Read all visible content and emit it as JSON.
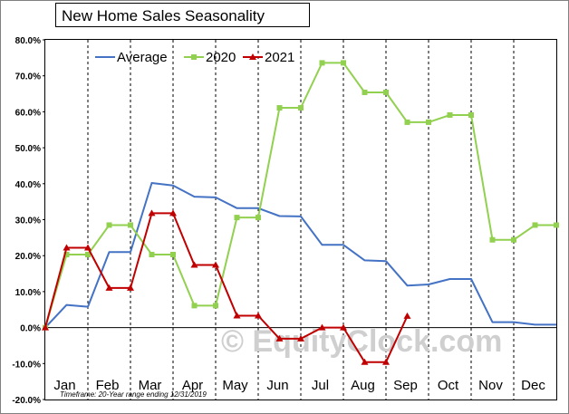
{
  "chart_data": {
    "type": "line",
    "title": "New Home Sales Seasonality",
    "categories": [
      "Jan",
      "Feb",
      "Mar",
      "Apr",
      "May",
      "Jun",
      "Jul",
      "Aug",
      "Sep",
      "Oct",
      "Nov",
      "Dec"
    ],
    "y_ticks": [
      "80.0%",
      "70.0%",
      "60.0%",
      "50.0%",
      "40.0%",
      "30.0%",
      "20.0%",
      "10.0%",
      "0.0%",
      "-10.0%",
      "-20.0%"
    ],
    "ylim": [
      -20,
      80
    ],
    "grid": "vertical dashed lines at month boundaries",
    "legend_position": "top-left",
    "series": [
      {
        "name": "Average",
        "color": "#4472c4",
        "marker": "none",
        "points": [
          [
            0,
            0
          ],
          [
            0.5,
            6.3
          ],
          [
            1,
            5.8
          ],
          [
            1.5,
            21
          ],
          [
            2,
            21
          ],
          [
            2.5,
            40.2
          ],
          [
            3,
            39.5
          ],
          [
            3.5,
            36.4
          ],
          [
            4,
            36.2
          ],
          [
            4.5,
            33.2
          ],
          [
            5,
            33.2
          ],
          [
            5.5,
            31
          ],
          [
            6,
            30.9
          ],
          [
            6.5,
            23
          ],
          [
            7,
            23
          ],
          [
            7.5,
            18.7
          ],
          [
            8,
            18.5
          ],
          [
            8.5,
            11.7
          ],
          [
            9,
            12
          ],
          [
            9.5,
            13.5
          ],
          [
            10,
            13.5
          ],
          [
            10.5,
            1.5
          ],
          [
            11,
            1.5
          ],
          [
            11.5,
            0.8
          ],
          [
            12,
            0.8
          ]
        ]
      },
      {
        "name": "2020",
        "color": "#92d050",
        "marker": "square",
        "points": [
          [
            0,
            0
          ],
          [
            0.5,
            20.3
          ],
          [
            1,
            20.3
          ],
          [
            1.5,
            28.5
          ],
          [
            2,
            28.5
          ],
          [
            2.5,
            20.3
          ],
          [
            3,
            20.3
          ],
          [
            3.5,
            6.1
          ],
          [
            4,
            6.1
          ],
          [
            4.5,
            30.6
          ],
          [
            5,
            30.6
          ],
          [
            5.5,
            61.1
          ],
          [
            6,
            61.1
          ],
          [
            6.5,
            73.6
          ],
          [
            7,
            73.6
          ],
          [
            7.5,
            65.4
          ],
          [
            8,
            65.4
          ],
          [
            8.5,
            57.1
          ],
          [
            9,
            57.1
          ],
          [
            9.5,
            59.1
          ],
          [
            10,
            59.1
          ],
          [
            10.5,
            24.4
          ],
          [
            11,
            24.4
          ],
          [
            11.5,
            28.5
          ],
          [
            12,
            28.5
          ]
        ]
      },
      {
        "name": "2021",
        "color": "#c00000",
        "marker": "triangle",
        "points": [
          [
            0,
            0
          ],
          [
            0.5,
            22.2
          ],
          [
            1,
            22.2
          ],
          [
            1.5,
            11
          ],
          [
            2,
            11
          ],
          [
            2.5,
            31.8
          ],
          [
            3,
            31.8
          ],
          [
            3.5,
            17.4
          ],
          [
            4,
            17.4
          ],
          [
            4.5,
            3.3
          ],
          [
            5,
            3.3
          ],
          [
            5.5,
            -3.1
          ],
          [
            6,
            -3.1
          ],
          [
            6.5,
            0
          ],
          [
            7,
            0
          ],
          [
            7.5,
            -9.6
          ],
          [
            8,
            -9.6
          ],
          [
            8.5,
            3.2
          ]
        ]
      }
    ],
    "note": "Timeframe: 20-Year range ending 12/31/2019",
    "watermark": "© EquityClock.com"
  }
}
